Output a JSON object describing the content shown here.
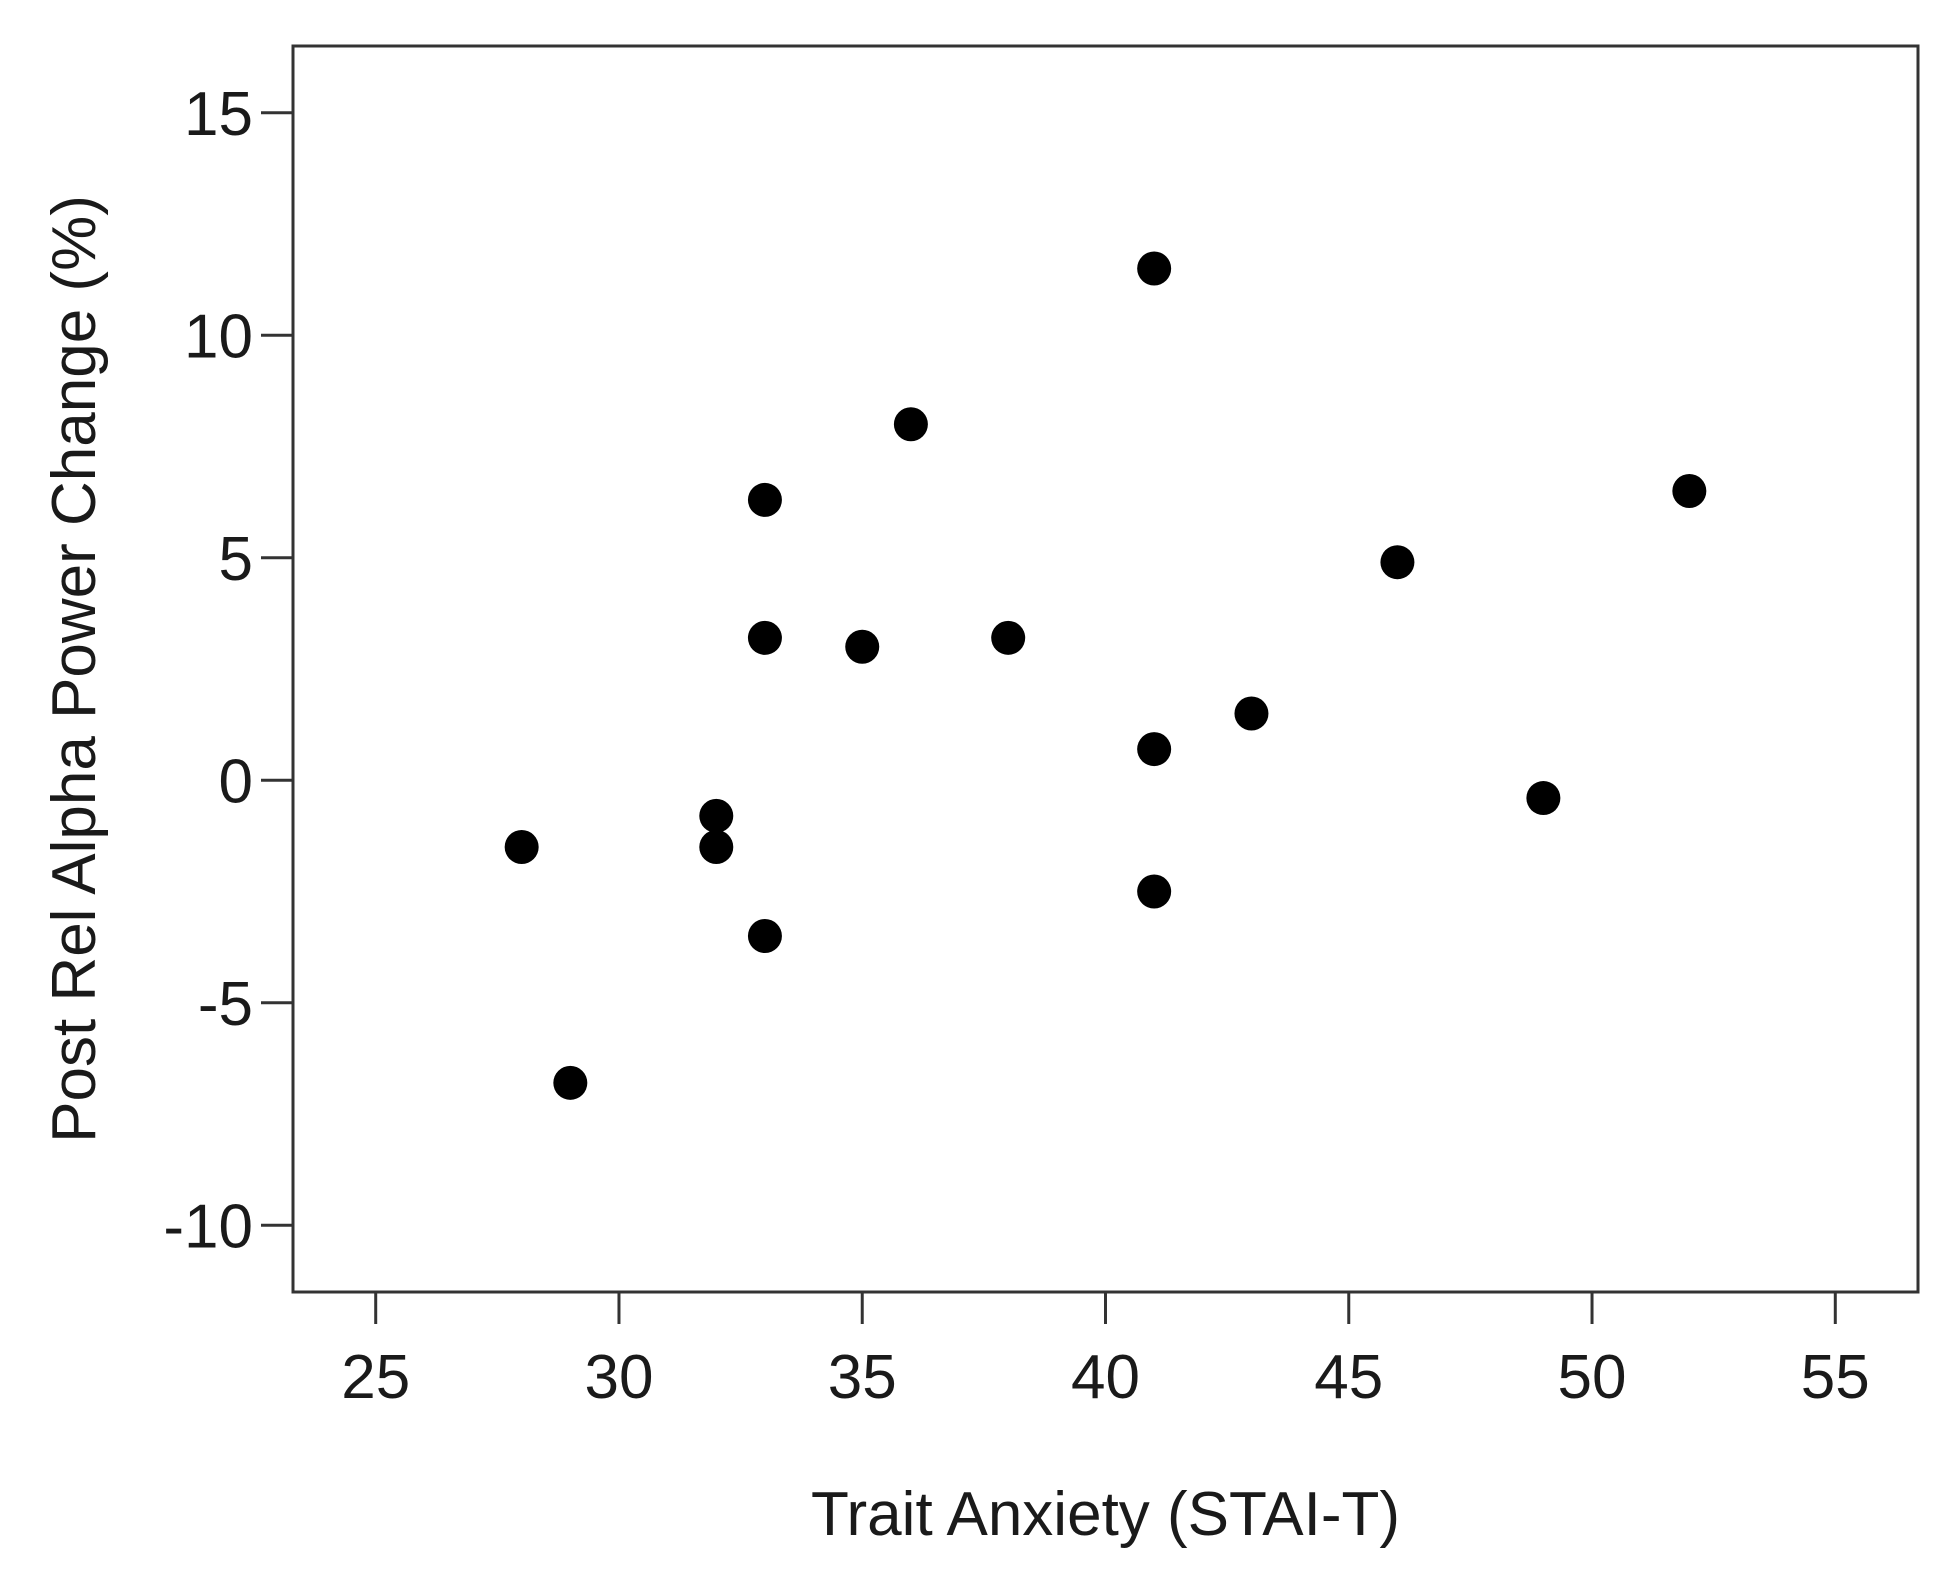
{
  "chart_data": {
    "type": "scatter",
    "xlabel": "Trait Anxiety (STAI-T)",
    "ylabel": "Post Rel Alpha Power Change (%)",
    "xlim": [
      23.3,
      56.7
    ],
    "ylim": [
      -11.5,
      16.5
    ],
    "xticks": [
      25,
      30,
      35,
      40,
      45,
      50,
      55
    ],
    "yticks": [
      -10,
      -5,
      0,
      5,
      10,
      15
    ],
    "xtick_labels": [
      "25",
      "30",
      "35",
      "40",
      "45",
      "50",
      "55"
    ],
    "ytick_labels": [
      "-10",
      "-5",
      "0",
      "5",
      "10",
      "15"
    ],
    "grid": false,
    "colors": {
      "point": "#000000",
      "frame": "#333333"
    },
    "points": [
      {
        "x": 28,
        "y": -1.5
      },
      {
        "x": 29,
        "y": -6.8
      },
      {
        "x": 32,
        "y": -0.8
      },
      {
        "x": 32,
        "y": -1.5
      },
      {
        "x": 33,
        "y": 6.3
      },
      {
        "x": 33,
        "y": 3.2
      },
      {
        "x": 33,
        "y": -3.5
      },
      {
        "x": 35,
        "y": 3.0
      },
      {
        "x": 36,
        "y": 8.0
      },
      {
        "x": 38,
        "y": 3.2
      },
      {
        "x": 41,
        "y": 11.5
      },
      {
        "x": 41,
        "y": 0.7
      },
      {
        "x": 41,
        "y": -2.5
      },
      {
        "x": 43,
        "y": 1.5
      },
      {
        "x": 46,
        "y": 4.9
      },
      {
        "x": 49,
        "y": -0.4
      },
      {
        "x": 52,
        "y": 6.5
      }
    ]
  }
}
